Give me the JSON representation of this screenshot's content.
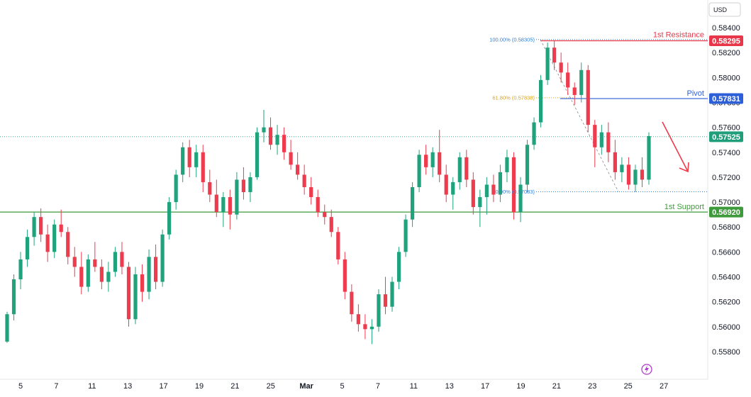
{
  "chart_data": {
    "type": "candlestick",
    "currency": "USD",
    "ylim": [
      0.5572,
      0.5848
    ],
    "y_ticks": [
      "0.58400",
      "0.58200",
      "0.58000",
      "0.57800",
      "0.57600",
      "0.57400",
      "0.57200",
      "0.57000",
      "0.56800",
      "0.56600",
      "0.56400",
      "0.56200",
      "0.56000",
      "0.55800"
    ],
    "x_ticks": [
      {
        "label": "5",
        "bar": 0
      },
      {
        "label": "7",
        "bar": 2
      },
      {
        "label": "11",
        "bar": 4
      },
      {
        "label": "13",
        "bar": 6
      },
      {
        "label": "17",
        "bar": 8
      },
      {
        "label": "19",
        "bar": 10
      },
      {
        "label": "21",
        "bar": 12
      },
      {
        "label": "25",
        "bar": 14
      },
      {
        "label": "Mar",
        "bar": 18
      },
      {
        "label": "5",
        "bar": 20
      },
      {
        "label": "7",
        "bar": 22
      },
      {
        "label": "11",
        "bar": 24
      },
      {
        "label": "13",
        "bar": 26
      },
      {
        "label": "17",
        "bar": 28
      },
      {
        "label": "19",
        "bar": 30
      },
      {
        "label": "21",
        "bar": 32
      },
      {
        "label": "23",
        "bar": 34
      },
      {
        "label": "25",
        "bar": 35.9
      },
      {
        "label": "27",
        "bar": 37.9
      }
    ],
    "levels": [
      {
        "name": "1st Resistance",
        "value": 0.58295,
        "color": "#e8374a"
      },
      {
        "name": "Pivot",
        "value": 0.57831,
        "color": "#2d5fd8"
      },
      {
        "name": "1st Support",
        "value": 0.5692,
        "color": "#3f9a3c"
      }
    ],
    "current_price": {
      "value": 0.57525,
      "color": "#1e9e7a"
    },
    "fibonacci": [
      {
        "label": "100.00% (0.58305)",
        "value": 0.58305,
        "color": "#2f80d6"
      },
      {
        "label": "61.80% (0.57838)",
        "value": 0.57838,
        "color": "#d9a21b"
      },
      {
        "label": "0.00% (0.57083)",
        "value": 0.57083,
        "color": "#2f80d6"
      }
    ],
    "up_color": "#20a27c",
    "down_color": "#ee3b4d",
    "series": [
      [
        0.5588,
        0.5612,
        0.5587,
        0.561
      ],
      [
        0.561,
        0.5642,
        0.5605,
        0.5638
      ],
      [
        0.5638,
        0.566,
        0.563,
        0.5654
      ],
      [
        0.5654,
        0.5678,
        0.5648,
        0.5672
      ],
      [
        0.5672,
        0.5692,
        0.5665,
        0.5688
      ],
      [
        0.5688,
        0.5695,
        0.5668,
        0.5674
      ],
      [
        0.5674,
        0.5682,
        0.5652,
        0.566
      ],
      [
        0.566,
        0.5686,
        0.5655,
        0.5682
      ],
      [
        0.5682,
        0.5694,
        0.5672,
        0.5676
      ],
      [
        0.5676,
        0.568,
        0.565,
        0.5656
      ],
      [
        0.5656,
        0.5664,
        0.564,
        0.5648
      ],
      [
        0.5648,
        0.566,
        0.5626,
        0.5632
      ],
      [
        0.5632,
        0.5658,
        0.5628,
        0.5654
      ],
      [
        0.5654,
        0.5668,
        0.5644,
        0.5648
      ],
      [
        0.5648,
        0.5654,
        0.563,
        0.5636
      ],
      [
        0.5636,
        0.5652,
        0.5628,
        0.5644
      ],
      [
        0.5644,
        0.5664,
        0.564,
        0.566
      ],
      [
        0.566,
        0.5668,
        0.5642,
        0.5648
      ],
      [
        0.5648,
        0.5652,
        0.56,
        0.5606
      ],
      [
        0.5606,
        0.5648,
        0.5602,
        0.5642
      ],
      [
        0.5642,
        0.565,
        0.562,
        0.5628
      ],
      [
        0.5628,
        0.5662,
        0.5622,
        0.5656
      ],
      [
        0.5656,
        0.5666,
        0.563,
        0.5636
      ],
      [
        0.5636,
        0.5678,
        0.5632,
        0.5674
      ],
      [
        0.5674,
        0.5704,
        0.567,
        0.57
      ],
      [
        0.57,
        0.5726,
        0.5694,
        0.5722
      ],
      [
        0.5722,
        0.5748,
        0.5716,
        0.5744
      ],
      [
        0.5744,
        0.575,
        0.572,
        0.5728
      ],
      [
        0.5728,
        0.5746,
        0.572,
        0.574
      ],
      [
        0.574,
        0.5746,
        0.5708,
        0.5716
      ],
      [
        0.5716,
        0.5726,
        0.57,
        0.5706
      ],
      [
        0.5706,
        0.5718,
        0.5688,
        0.5692
      ],
      [
        0.5692,
        0.5708,
        0.568,
        0.5704
      ],
      [
        0.5704,
        0.571,
        0.5678,
        0.569
      ],
      [
        0.569,
        0.5724,
        0.5686,
        0.5718
      ],
      [
        0.5718,
        0.5728,
        0.5702,
        0.5708
      ],
      [
        0.5708,
        0.5724,
        0.57,
        0.572
      ],
      [
        0.572,
        0.576,
        0.5718,
        0.5756
      ],
      [
        0.5756,
        0.5774,
        0.5748,
        0.576
      ],
      [
        0.576,
        0.5768,
        0.5742,
        0.5746
      ],
      [
        0.5746,
        0.5762,
        0.5738,
        0.5754
      ],
      [
        0.5754,
        0.576,
        0.5734,
        0.574
      ],
      [
        0.574,
        0.575,
        0.5726,
        0.573
      ],
      [
        0.573,
        0.574,
        0.5718,
        0.5722
      ],
      [
        0.5722,
        0.573,
        0.5706,
        0.5712
      ],
      [
        0.5712,
        0.572,
        0.5698,
        0.5704
      ],
      [
        0.5704,
        0.571,
        0.5688,
        0.5692
      ],
      [
        0.5692,
        0.5698,
        0.5682,
        0.5688
      ],
      [
        0.5688,
        0.5694,
        0.5672,
        0.5676
      ],
      [
        0.5676,
        0.568,
        0.565,
        0.5654
      ],
      [
        0.5654,
        0.566,
        0.5622,
        0.5628
      ],
      [
        0.5628,
        0.5634,
        0.5604,
        0.561
      ],
      [
        0.561,
        0.5618,
        0.5596,
        0.5602
      ],
      [
        0.5602,
        0.561,
        0.559,
        0.5598
      ],
      [
        0.5598,
        0.5606,
        0.5586,
        0.56
      ],
      [
        0.56,
        0.563,
        0.5596,
        0.5626
      ],
      [
        0.5626,
        0.564,
        0.561,
        0.5616
      ],
      [
        0.5616,
        0.564,
        0.5612,
        0.5636
      ],
      [
        0.5636,
        0.5664,
        0.563,
        0.566
      ],
      [
        0.566,
        0.569,
        0.5656,
        0.5686
      ],
      [
        0.5686,
        0.5716,
        0.568,
        0.5712
      ],
      [
        0.5712,
        0.5742,
        0.5708,
        0.5738
      ],
      [
        0.5738,
        0.5746,
        0.5722,
        0.5728
      ],
      [
        0.5728,
        0.5744,
        0.572,
        0.574
      ],
      [
        0.574,
        0.5758,
        0.5716,
        0.5722
      ],
      [
        0.5722,
        0.573,
        0.57,
        0.5706
      ],
      [
        0.5706,
        0.572,
        0.5694,
        0.5716
      ],
      [
        0.5716,
        0.574,
        0.571,
        0.5736
      ],
      [
        0.5736,
        0.5742,
        0.5712,
        0.5718
      ],
      [
        0.5718,
        0.5724,
        0.569,
        0.5696
      ],
      [
        0.5696,
        0.571,
        0.568,
        0.5704
      ],
      [
        0.5704,
        0.572,
        0.569,
        0.5714
      ],
      [
        0.5714,
        0.5722,
        0.57,
        0.5706
      ],
      [
        0.5706,
        0.573,
        0.57,
        0.5724
      ],
      [
        0.5724,
        0.5742,
        0.5716,
        0.5736
      ],
      [
        0.5736,
        0.574,
        0.5686,
        0.5692
      ],
      [
        0.5692,
        0.572,
        0.5684,
        0.5714
      ],
      [
        0.5714,
        0.575,
        0.5708,
        0.5746
      ],
      [
        0.5746,
        0.5768,
        0.5742,
        0.5764
      ],
      [
        0.5764,
        0.5802,
        0.576,
        0.5798
      ],
      [
        0.5798,
        0.5828,
        0.5794,
        0.5824
      ],
      [
        0.5824,
        0.583,
        0.5806,
        0.5812
      ],
      [
        0.5812,
        0.582,
        0.5796,
        0.5804
      ],
      [
        0.5804,
        0.5812,
        0.5786,
        0.5792
      ],
      [
        0.5792,
        0.5796,
        0.5778,
        0.5786
      ],
      [
        0.5786,
        0.5812,
        0.578,
        0.5806
      ],
      [
        0.5806,
        0.581,
        0.5756,
        0.5762
      ],
      [
        0.5762,
        0.5766,
        0.5728,
        0.5744
      ],
      [
        0.5744,
        0.5762,
        0.5738,
        0.5756
      ],
      [
        0.5756,
        0.5764,
        0.5732,
        0.574
      ],
      [
        0.574,
        0.575,
        0.5718,
        0.5724
      ],
      [
        0.5724,
        0.5736,
        0.5716,
        0.573
      ],
      [
        0.573,
        0.5736,
        0.571,
        0.5714
      ],
      [
        0.5714,
        0.573,
        0.5708,
        0.5726
      ],
      [
        0.5726,
        0.5736,
        0.5712,
        0.5718
      ],
      [
        0.5718,
        0.5756,
        0.5714,
        0.5753
      ]
    ]
  },
  "labels": {
    "currency": "USD",
    "resistance_name": "1st Resistance",
    "resistance_value": "0.58295",
    "pivot_name": "Pivot",
    "pivot_value": "0.57831",
    "support_name": "1st Support",
    "support_value": "0.56920",
    "current_value": "0.57525",
    "fib_100": "100.00% (0.58305)",
    "fib_618": "61.80% (0.57838)",
    "fib_0": "0.00% (0.57083)"
  }
}
